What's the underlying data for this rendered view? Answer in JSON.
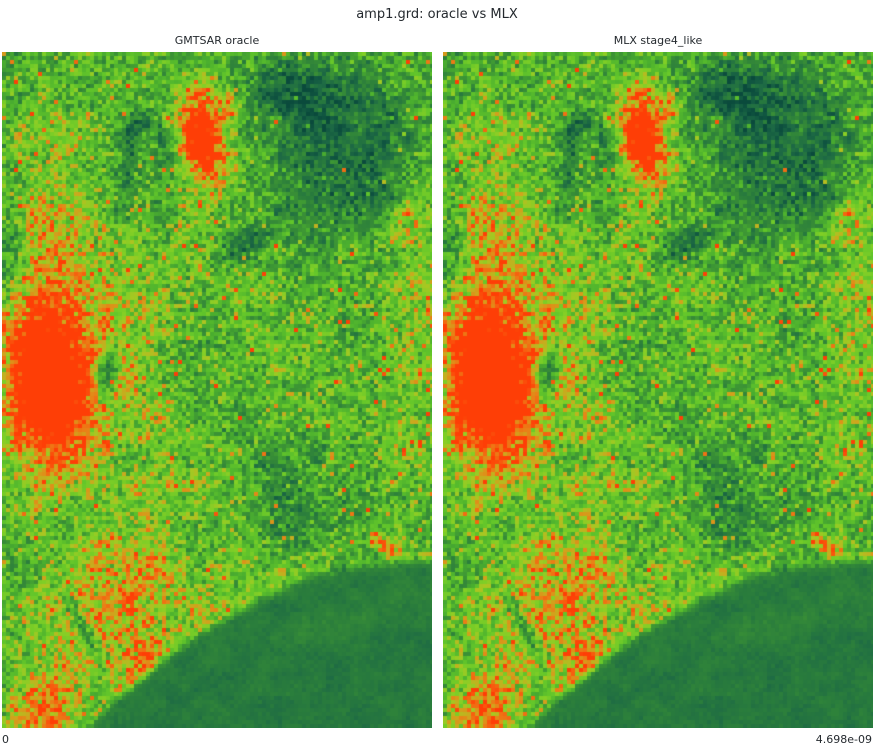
{
  "title": "amp1.grd: oracle vs MLX",
  "colorbar": {
    "min_label": "0",
    "max_label": "4.698e-09"
  },
  "colors": {
    "background": "#ffffff",
    "text": "#24292e"
  },
  "chart_data": {
    "type": "heatmap",
    "title": "amp1.grd: oracle vs MLX",
    "panels": [
      {
        "title": "GMTSAR oracle"
      },
      {
        "title": "MLX stage4_like"
      }
    ],
    "value_range": {
      "min": 0,
      "max": 4.698e-09
    },
    "value_labels": [
      "0",
      "4.698e-09"
    ],
    "legend_position": "none",
    "grid": false,
    "note": "Two near-identical SAR amplitude rasters (amp1.grd) shown side by side with a green-to-red colormap; amplitude spans 0 to 4.698e-09. Features: large red-orange blob left-center, red cluster top-center, dark teal highland top-right, small dark lakes, orange band lower-left, smooth dark-green sea across the bottom-right with a curved coastline.",
    "colormap_stops": [
      [
        0.0,
        "#0a4a3c"
      ],
      [
        0.1,
        "#115741"
      ],
      [
        0.2,
        "#1e6b44"
      ],
      [
        0.3,
        "#2a7d3c"
      ],
      [
        0.42,
        "#398f36"
      ],
      [
        0.52,
        "#4aae2f"
      ],
      [
        0.62,
        "#63c62a"
      ],
      [
        0.7,
        "#83cf26"
      ],
      [
        0.76,
        "#a8c722"
      ],
      [
        0.82,
        "#cfa51d"
      ],
      [
        0.88,
        "#ea7f16"
      ],
      [
        0.94,
        "#f85c0e"
      ],
      [
        1.0,
        "#fe3e06"
      ]
    ],
    "render": {
      "seed": 1337,
      "cell_size": 4,
      "base": 0.56,
      "coarse": {
        "w": 12,
        "h": 18,
        "amp": 0.17
      },
      "fine": {
        "w": 34,
        "h": 52,
        "amp": 0.13
      },
      "speckle": {
        "land": 0.26,
        "sea": 0.05,
        "hot_prob": 0.02,
        "hot_amp": 0.3
      },
      "coast": {
        "a": 1.137,
        "b": -0.81,
        "c": 0.417,
        "blend": 0.018,
        "sea_level": 0.28,
        "sea_noise": 0.09,
        "glow": 0.06,
        "glow_width": 0.02
      },
      "feature_format": "[x, y, rx, ry, rot_deg, amp]",
      "features": [
        [
          0.085,
          0.49,
          0.085,
          0.105,
          0,
          0.62
        ],
        [
          0.17,
          0.49,
          0.12,
          0.16,
          0,
          0.22
        ],
        [
          0.46,
          0.13,
          0.05,
          0.065,
          0,
          0.55
        ],
        [
          0.47,
          0.17,
          0.09,
          0.1,
          0,
          0.22
        ],
        [
          0.53,
          0.085,
          0.025,
          0.02,
          0,
          0.3
        ],
        [
          0.63,
          0.1,
          0.012,
          0.012,
          0,
          0.3
        ],
        [
          0.12,
          0.3,
          0.12,
          0.18,
          0,
          0.16
        ],
        [
          0.3,
          0.5,
          0.22,
          0.16,
          -20,
          0.1
        ],
        [
          0.28,
          0.81,
          0.17,
          0.1,
          -15,
          0.28
        ],
        [
          0.1,
          0.965,
          0.075,
          0.05,
          0,
          0.4
        ],
        [
          0.33,
          0.9,
          0.05,
          0.04,
          0,
          0.22
        ],
        [
          0.97,
          0.3,
          0.07,
          0.22,
          0,
          0.16
        ],
        [
          0.93,
          0.255,
          0.07,
          0.035,
          -15,
          0.26
        ],
        [
          0.86,
          0.72,
          0.015,
          0.012,
          0,
          0.32
        ],
        [
          0.9,
          0.735,
          0.02,
          0.012,
          0,
          0.22
        ],
        [
          0.76,
          0.6,
          0.012,
          0.01,
          0,
          0.33
        ],
        [
          0.8,
          0.14,
          0.2,
          0.13,
          15,
          -0.36
        ],
        [
          0.66,
          0.06,
          0.1,
          0.05,
          0,
          -0.18
        ],
        [
          0.41,
          0.165,
          0.1,
          0.028,
          37,
          -0.2
        ],
        [
          0.295,
          0.155,
          0.018,
          0.065,
          12,
          -0.2
        ],
        [
          0.33,
          0.1,
          0.05,
          0.016,
          -35,
          -0.16
        ],
        [
          0.565,
          0.285,
          0.055,
          0.018,
          -15,
          -0.28
        ],
        [
          0.243,
          0.475,
          0.025,
          0.038,
          20,
          -0.55
        ],
        [
          0.19,
          0.855,
          0.055,
          0.014,
          49,
          -0.38
        ],
        [
          0.02,
          0.28,
          0.035,
          0.075,
          0,
          -0.22
        ],
        [
          0.63,
          0.62,
          0.1,
          0.03,
          35,
          -0.16
        ],
        [
          0.7,
          0.7,
          0.12,
          0.035,
          -10,
          -0.14
        ],
        [
          0.73,
          0.603,
          0.022,
          0.009,
          0,
          -0.33
        ],
        [
          0.52,
          0.565,
          0.03,
          0.012,
          20,
          -0.18
        ]
      ],
      "sea_features": [
        [
          0.785,
          0.845,
          0.21,
          0.025,
          -12,
          0.07
        ]
      ]
    }
  }
}
